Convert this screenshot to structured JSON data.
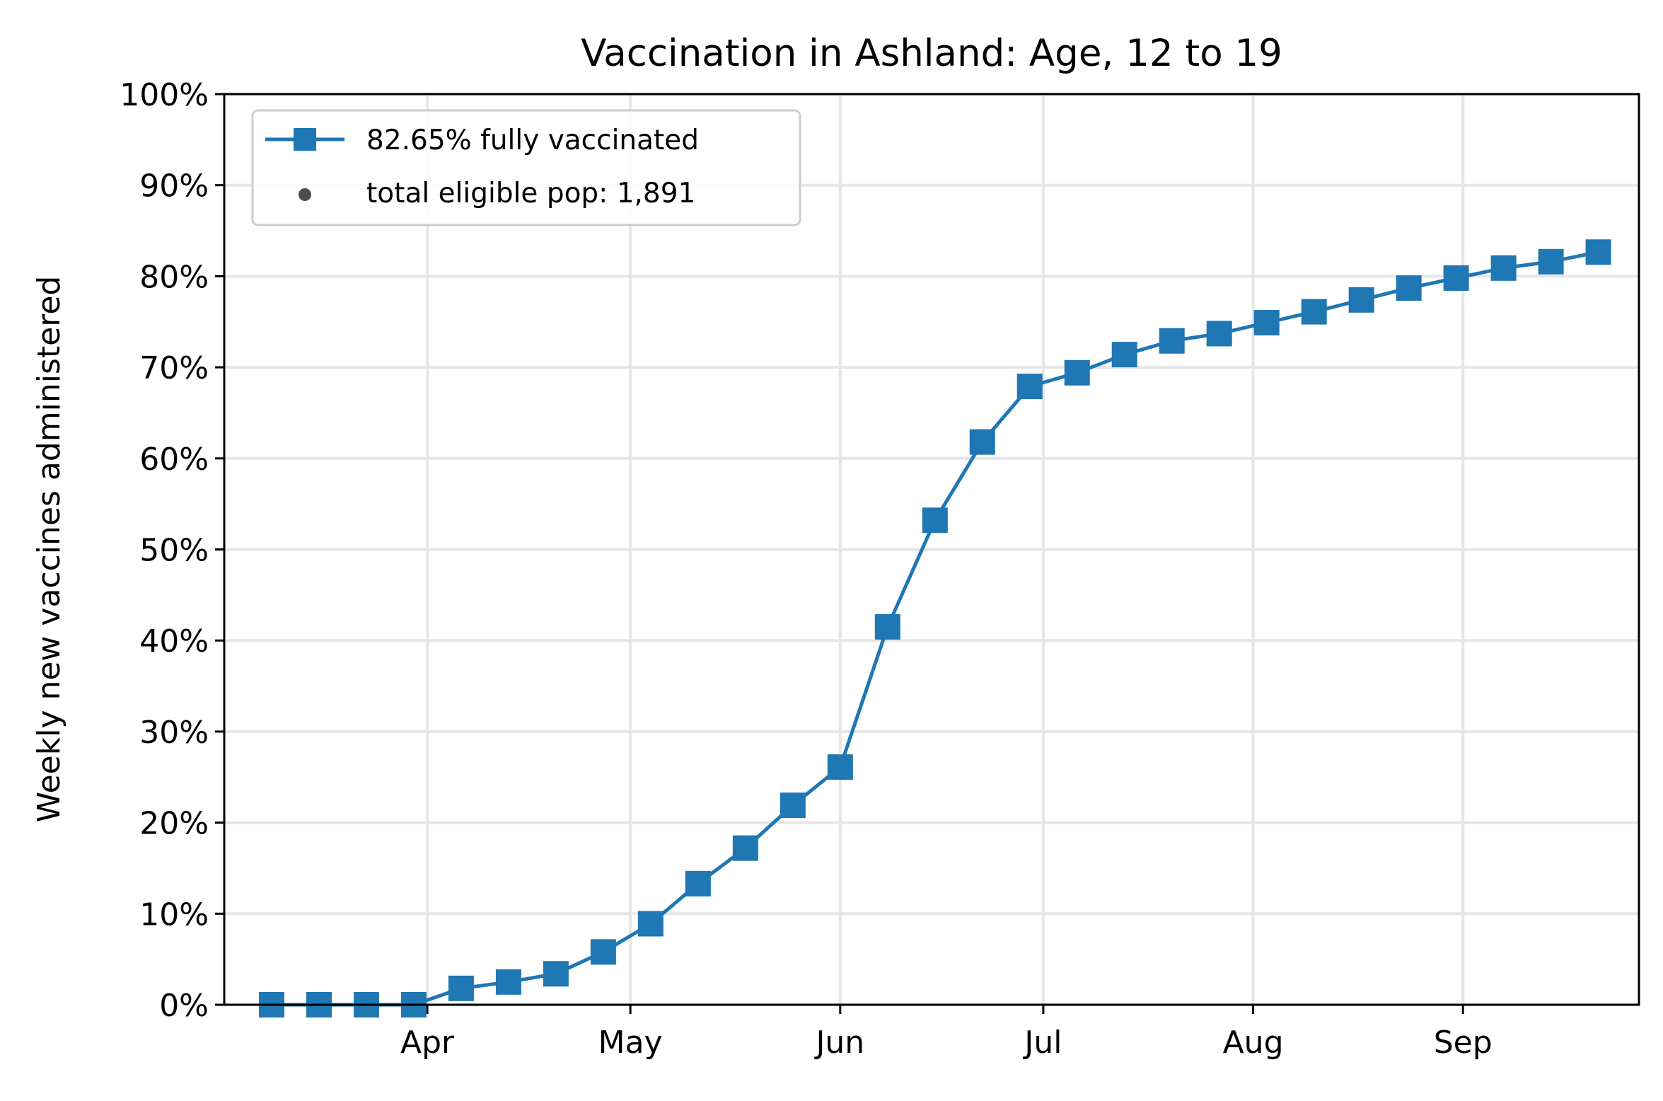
{
  "chart_data": {
    "type": "line",
    "title": "Vaccination in Ashland: Age, 12 to 19",
    "xlabel": "",
    "ylabel": "Weekly new vaccines administered",
    "xlim": [
      "2021-03-02",
      "2021-09-27"
    ],
    "ylim": [
      0,
      100
    ],
    "y_ticks": [
      0,
      10,
      20,
      30,
      40,
      50,
      60,
      70,
      80,
      90,
      100
    ],
    "y_tick_labels": [
      "0%",
      "10%",
      "20%",
      "30%",
      "40%",
      "50%",
      "60%",
      "70%",
      "80%",
      "90%",
      "100%"
    ],
    "x_ticks": [
      "2021-04-01",
      "2021-05-01",
      "2021-06-01",
      "2021-07-01",
      "2021-08-01",
      "2021-09-01"
    ],
    "x_tick_labels": [
      "Apr",
      "May",
      "Jun",
      "Jul",
      "Aug",
      "Sep"
    ],
    "grid": true,
    "legend_position": "top-left",
    "colors": {
      "series": "#1f77b4",
      "dot": "#4d4d4d",
      "grid": "#e6e6e6"
    },
    "legend": [
      {
        "label": "82.65% fully vaccinated",
        "marker": "square-line"
      },
      {
        "label": "total eligible pop: 1,891",
        "marker": "dot"
      }
    ],
    "series": [
      {
        "name": "82.65% fully vaccinated",
        "marker": "square",
        "x": [
          "2021-03-09",
          "2021-03-16",
          "2021-03-23",
          "2021-03-30",
          "2021-04-06",
          "2021-04-13",
          "2021-04-20",
          "2021-04-27",
          "2021-05-04",
          "2021-05-11",
          "2021-05-18",
          "2021-05-25",
          "2021-06-01",
          "2021-06-08",
          "2021-06-15",
          "2021-06-22",
          "2021-06-29",
          "2021-07-06",
          "2021-07-13",
          "2021-07-20",
          "2021-07-27",
          "2021-08-03",
          "2021-08-10",
          "2021-08-17",
          "2021-08-24",
          "2021-08-31",
          "2021-09-07",
          "2021-09-14",
          "2021-09-21"
        ],
        "y": [
          0.0,
          0.0,
          0.0,
          0.0,
          1.8,
          2.5,
          3.4,
          5.8,
          8.9,
          13.3,
          17.2,
          21.9,
          26.1,
          41.5,
          53.2,
          61.8,
          67.9,
          69.4,
          71.4,
          72.9,
          73.7,
          74.9,
          76.1,
          77.4,
          78.7,
          79.8,
          80.9,
          81.6,
          82.65
        ]
      }
    ]
  }
}
